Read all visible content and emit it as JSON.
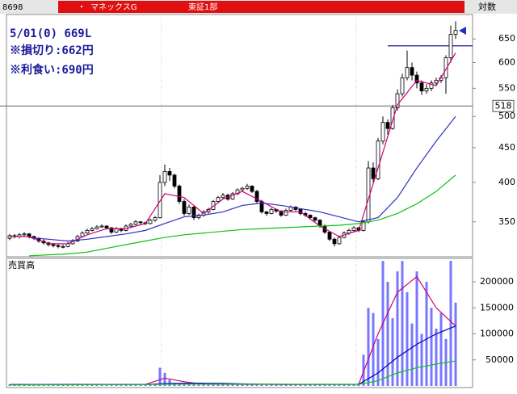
{
  "header": {
    "code": "8698",
    "bullet": "・",
    "name": "マネックスG",
    "market": "東証1部",
    "scale_label": "対数"
  },
  "chart_data": [
    {
      "type": "candlestick",
      "log_scale": true,
      "annotations": [
        "5/01(0) 669L",
        "※損切り:662円",
        "※利食い:690円"
      ],
      "up_color": "#ffffff",
      "down_color": "#000000",
      "ylim": [
        311,
        706
      ],
      "yticks": [
        650,
        600,
        550,
        500,
        450,
        400,
        350
      ],
      "level_line": 518,
      "resistance_line": 635,
      "ohlc": [
        [
          331,
          336,
          329,
          334
        ],
        [
          334,
          336,
          331,
          333
        ],
        [
          333,
          337,
          331,
          335
        ],
        [
          335,
          338,
          333,
          336
        ],
        [
          336,
          337,
          331,
          333
        ],
        [
          333,
          334,
          329,
          331
        ],
        [
          331,
          332,
          326,
          328
        ],
        [
          328,
          330,
          324,
          326
        ],
        [
          326,
          327,
          322,
          324
        ],
        [
          324,
          326,
          321,
          323
        ],
        [
          323,
          325,
          320,
          322
        ],
        [
          322,
          324,
          320,
          322
        ],
        [
          322,
          327,
          321,
          325
        ],
        [
          325,
          330,
          324,
          328
        ],
        [
          328,
          335,
          327,
          333
        ],
        [
          333,
          339,
          332,
          337
        ],
        [
          337,
          342,
          336,
          340
        ],
        [
          340,
          344,
          339,
          342
        ],
        [
          342,
          346,
          341,
          344
        ],
        [
          344,
          347,
          343,
          345
        ],
        [
          345,
          346,
          341,
          343
        ],
        [
          343,
          344,
          336,
          338
        ],
        [
          338,
          344,
          337,
          342
        ],
        [
          342,
          343,
          338,
          340
        ],
        [
          340,
          347,
          339,
          345
        ],
        [
          345,
          349,
          344,
          347
        ],
        [
          347,
          352,
          346,
          350
        ],
        [
          350,
          351,
          347,
          349
        ],
        [
          349,
          350,
          346,
          348
        ],
        [
          348,
          354,
          347,
          352
        ],
        [
          352,
          357,
          350,
          355
        ],
        [
          355,
          410,
          354,
          400
        ],
        [
          400,
          425,
          395,
          415
        ],
        [
          415,
          420,
          402,
          410
        ],
        [
          410,
          412,
          392,
          395
        ],
        [
          395,
          397,
          372,
          375
        ],
        [
          375,
          378,
          357,
          360
        ],
        [
          360,
          371,
          358,
          368
        ],
        [
          368,
          369,
          352,
          355
        ],
        [
          355,
          360,
          353,
          358
        ],
        [
          358,
          364,
          356,
          362
        ],
        [
          362,
          367,
          360,
          365
        ],
        [
          365,
          377,
          364,
          375
        ],
        [
          375,
          382,
          373,
          380
        ],
        [
          380,
          386,
          378,
          383
        ],
        [
          383,
          385,
          376,
          378
        ],
        [
          378,
          387,
          377,
          385
        ],
        [
          385,
          392,
          383,
          390
        ],
        [
          390,
          394,
          388,
          392
        ],
        [
          392,
          398,
          390,
          395
        ],
        [
          395,
          396,
          386,
          388
        ],
        [
          388,
          390,
          373,
          375
        ],
        [
          375,
          377,
          360,
          362
        ],
        [
          362,
          363,
          357,
          360
        ],
        [
          360,
          367,
          359,
          365
        ],
        [
          365,
          366,
          361,
          363
        ],
        [
          363,
          364,
          356,
          358
        ],
        [
          358,
          366,
          357,
          364
        ],
        [
          364,
          370,
          362,
          368
        ],
        [
          368,
          369,
          363,
          365
        ],
        [
          365,
          366,
          358,
          360
        ],
        [
          360,
          362,
          356,
          358
        ],
        [
          358,
          359,
          353,
          355
        ],
        [
          355,
          356,
          350,
          352
        ],
        [
          352,
          353,
          343,
          345
        ],
        [
          345,
          347,
          336,
          338
        ],
        [
          338,
          339,
          328,
          330
        ],
        [
          330,
          332,
          322,
          325
        ],
        [
          325,
          334,
          324,
          332
        ],
        [
          332,
          339,
          331,
          337
        ],
        [
          337,
          342,
          335,
          340
        ],
        [
          340,
          345,
          339,
          343
        ],
        [
          343,
          344,
          338,
          340
        ],
        [
          340,
          352,
          339,
          350
        ],
        [
          350,
          430,
          348,
          420
        ],
        [
          420,
          428,
          400,
          405
        ],
        [
          405,
          465,
          403,
          460
        ],
        [
          460,
          500,
          455,
          490
        ],
        [
          490,
          495,
          470,
          480
        ],
        [
          480,
          520,
          478,
          515
        ],
        [
          515,
          548,
          510,
          540
        ],
        [
          540,
          578,
          535,
          570
        ],
        [
          570,
          625,
          565,
          590
        ],
        [
          590,
          600,
          565,
          575
        ],
        [
          575,
          582,
          550,
          560
        ],
        [
          560,
          565,
          538,
          545
        ],
        [
          545,
          558,
          540,
          550
        ],
        [
          550,
          565,
          545,
          560
        ],
        [
          560,
          570,
          555,
          565
        ],
        [
          565,
          575,
          560,
          570
        ],
        [
          570,
          615,
          540,
          610
        ],
        [
          610,
          680,
          600,
          660
        ],
        [
          660,
          690,
          650,
          669
        ]
      ],
      "ma_x": [
        0,
        4,
        8,
        12,
        16,
        20,
        24,
        28,
        32,
        36,
        40,
        44,
        48,
        52,
        56,
        60,
        64,
        68,
        72,
        76,
        80,
        84,
        88,
        92
      ],
      "series": [
        {
          "color": "#d0007a",
          "values": [
            333,
            333,
            325,
            325,
            335,
            342,
            342,
            348,
            385,
            380,
            360,
            378,
            388,
            375,
            362,
            362,
            345,
            333,
            340,
            420,
            520,
            565,
            555,
            620
          ]
        },
        {
          "color": "#3030c0",
          "values": [
            null,
            332,
            330,
            328,
            330,
            333,
            336,
            340,
            348,
            356,
            358,
            362,
            370,
            373,
            370,
            366,
            362,
            356,
            350,
            355,
            380,
            420,
            460,
            500
          ]
        },
        {
          "color": "#10c010",
          "values": [
            null,
            312,
            313,
            314,
            316,
            320,
            324,
            328,
            332,
            335,
            337,
            339,
            341,
            342,
            343,
            344,
            345,
            346,
            348,
            352,
            360,
            372,
            388,
            410
          ]
        }
      ]
    },
    {
      "type": "bar",
      "title": "売買高",
      "color": "#7777ff",
      "ylim": [
        0,
        245000
      ],
      "yticks": [
        200000,
        150000,
        100000,
        50000
      ],
      "values": [
        3000,
        2500,
        2000,
        3500,
        2000,
        1500,
        2500,
        3000,
        2000,
        1500,
        2000,
        2500,
        3000,
        3500,
        4000,
        3000,
        2500,
        3000,
        2000,
        2500,
        2000,
        3000,
        2500,
        2000,
        3000,
        3500,
        3000,
        2500,
        2000,
        3000,
        4000,
        35000,
        25000,
        12000,
        6000,
        5000,
        4000,
        3500,
        3000,
        2500,
        3000,
        3500,
        4000,
        3000,
        3500,
        4000,
        3000,
        2500,
        3000,
        3500,
        4000,
        3000,
        2500,
        2000,
        3000,
        2500,
        2000,
        3000,
        2500,
        2000,
        3000,
        3500,
        4000,
        3000,
        3500,
        3000,
        2500,
        3000,
        3500,
        4000,
        3000,
        2500,
        5000,
        60000,
        150000,
        140000,
        90000,
        240000,
        200000,
        130000,
        220000,
        240000,
        180000,
        120000,
        220000,
        100000,
        200000,
        150000,
        110000,
        140000,
        90000,
        240000,
        160000
      ],
      "ma_x": [
        0,
        4,
        8,
        12,
        16,
        20,
        24,
        28,
        32,
        36,
        40,
        44,
        48,
        52,
        56,
        60,
        64,
        68,
        72,
        76,
        80,
        84,
        88,
        92
      ],
      "series": [
        {
          "color": "#d0007a",
          "values": [
            2800,
            2600,
            2500,
            3000,
            2700,
            2600,
            2800,
            3000,
            15000,
            8000,
            3200,
            3300,
            3100,
            3000,
            2800,
            2900,
            3100,
            3000,
            3200,
            100000,
            180000,
            210000,
            150000,
            115000
          ]
        },
        {
          "color": "#0000c0",
          "values": [
            2500,
            2500,
            2600,
            2700,
            2700,
            2700,
            2800,
            2800,
            4500,
            5000,
            5200,
            4800,
            4000,
            3300,
            3100,
            3000,
            3000,
            3000,
            3100,
            25000,
            55000,
            80000,
            100000,
            115000
          ]
        },
        {
          "color": "#10c010",
          "values": [
            2000,
            2100,
            2200,
            2300,
            2400,
            2500,
            2600,
            2700,
            3200,
            3400,
            3500,
            3500,
            3400,
            3300,
            3200,
            3200,
            3100,
            3100,
            3100,
            10000,
            25000,
            35000,
            42000,
            48000
          ]
        }
      ]
    }
  ]
}
